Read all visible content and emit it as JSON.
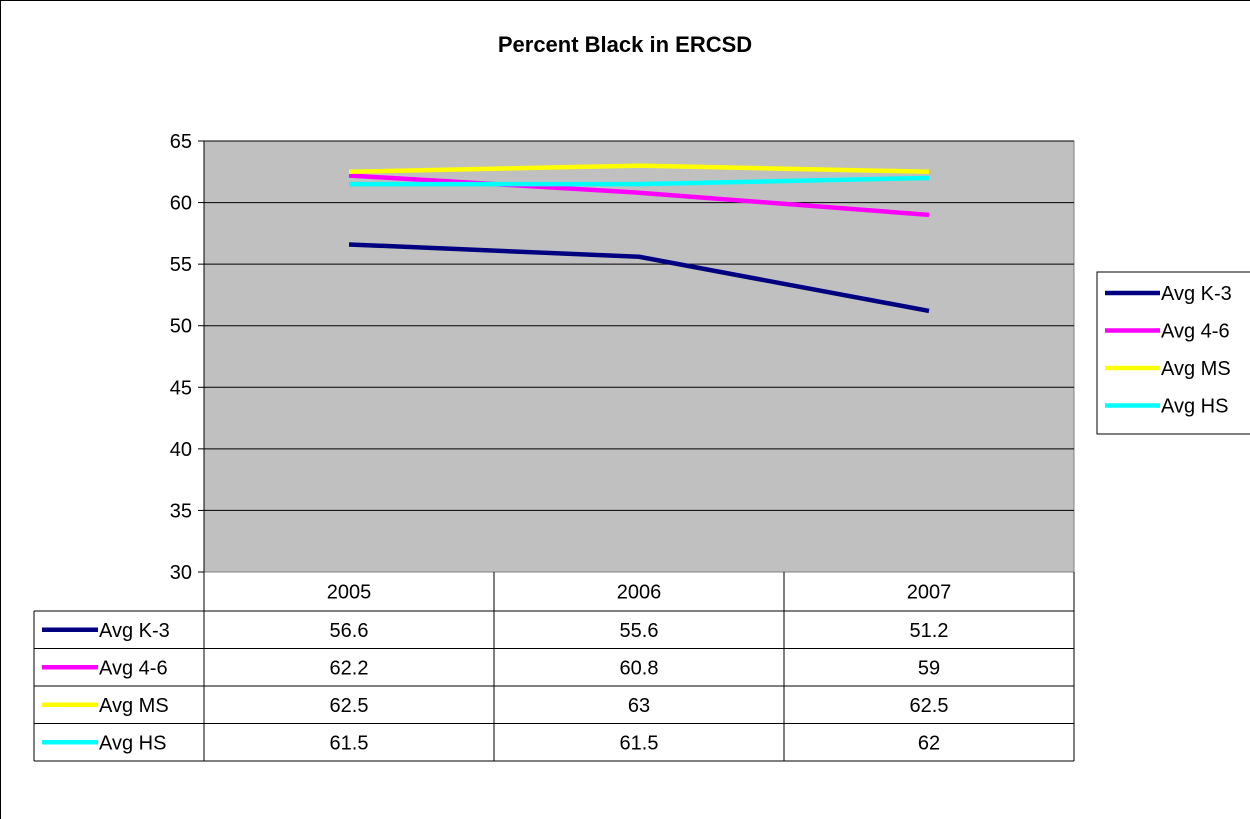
{
  "chart_data": {
    "type": "line",
    "title": "Percent Black in ERCSD",
    "categories": [
      "2005",
      "2006",
      "2007"
    ],
    "ylim": [
      30,
      65
    ],
    "yticks": [
      "30",
      "35",
      "40",
      "45",
      "50",
      "55",
      "60",
      "65"
    ],
    "grid": true,
    "legend_position": "right",
    "plot_background": "#c0c0c0",
    "series": [
      {
        "name": "Avg K-3",
        "color": "#000080",
        "values": [
          56.6,
          55.6,
          51.2
        ],
        "labels": [
          "56.6",
          "55.6",
          "51.2"
        ]
      },
      {
        "name": "Avg 4-6",
        "color": "#ff00ff",
        "values": [
          62.2,
          60.8,
          59
        ],
        "labels": [
          "62.2",
          "60.8",
          "59"
        ]
      },
      {
        "name": "Avg MS",
        "color": "#ffff00",
        "values": [
          62.5,
          63,
          62.5
        ],
        "labels": [
          "62.5",
          "63",
          "62.5"
        ]
      },
      {
        "name": "Avg HS",
        "color": "#00ffff",
        "values": [
          61.5,
          61.5,
          62
        ],
        "labels": [
          "61.5",
          "61.5",
          "62"
        ]
      }
    ]
  }
}
